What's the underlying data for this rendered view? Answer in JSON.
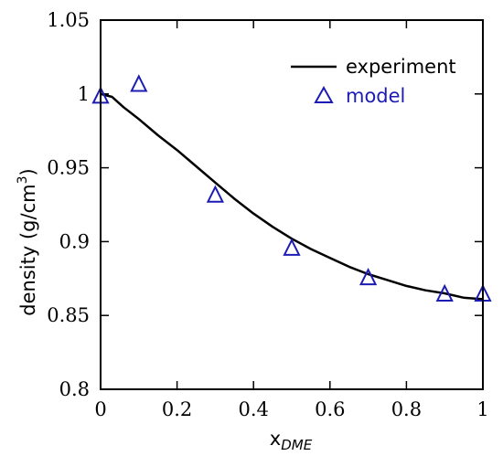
{
  "chart_data": {
    "type": "line",
    "title": "",
    "xlabel": "x",
    "xlabel_subscript": "DME",
    "ylabel": "density (g/cm",
    "ylabel_superscript": "3",
    "ylabel_suffix": ")",
    "xlim": [
      0,
      1
    ],
    "ylim": [
      0.8,
      1.05
    ],
    "grid": false,
    "legend_placement": "top-right",
    "x_ticks": [
      0,
      0.2,
      0.4,
      0.6,
      0.8,
      1
    ],
    "x_tick_labels": [
      "0",
      "0.2",
      "0.4",
      "0.6",
      "0.8",
      "1"
    ],
    "y_ticks": [
      0.8,
      0.85,
      0.9,
      0.95,
      1,
      1.05
    ],
    "y_tick_labels": [
      "0.8",
      "0.85",
      "0.9",
      "0.95",
      "1",
      "1.05"
    ],
    "series": [
      {
        "name": "experiment",
        "style": "line",
        "color": "#000000",
        "x": [
          0,
          0.03,
          0.06,
          0.1,
          0.15,
          0.2,
          0.25,
          0.3,
          0.35,
          0.4,
          0.45,
          0.5,
          0.55,
          0.6,
          0.65,
          0.7,
          0.75,
          0.8,
          0.85,
          0.9,
          0.95,
          1.0
        ],
        "y": [
          1.0,
          0.998,
          0.991,
          0.983,
          0.972,
          0.962,
          0.951,
          0.94,
          0.929,
          0.919,
          0.91,
          0.902,
          0.895,
          0.889,
          0.883,
          0.878,
          0.874,
          0.87,
          0.867,
          0.865,
          0.862,
          0.861
        ]
      },
      {
        "name": "model",
        "style": "marker",
        "marker": "triangle-open",
        "color": "#1c1cb4",
        "x": [
          0,
          0.1,
          0.3,
          0.5,
          0.7,
          0.9,
          1.0
        ],
        "y": [
          0.999,
          1.007,
          0.932,
          0.896,
          0.876,
          0.865,
          0.865
        ]
      }
    ]
  }
}
